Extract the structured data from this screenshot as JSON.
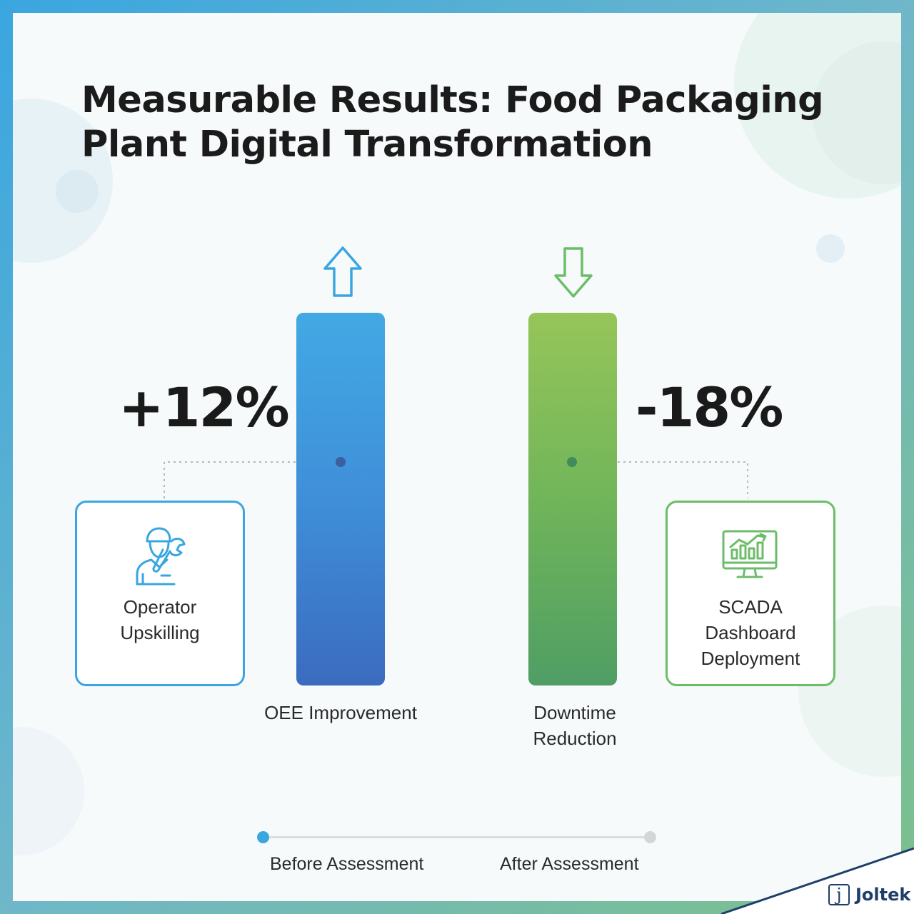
{
  "title": "Measurable Results: Food Packaging Plant Digital Transformation",
  "metrics": [
    {
      "label": "OEE Improvement",
      "change": "+12%",
      "direction": "up",
      "color": "#3f8fd8"
    },
    {
      "label": "Downtime Reduction",
      "change": "-18%",
      "direction": "down",
      "color": "#6cbd69"
    }
  ],
  "cards": {
    "left": {
      "label": "Operator Upskilling",
      "icon": "operator-wrench-icon",
      "color": "#3aa6e0"
    },
    "right": {
      "label": "SCADA Dashboard Deployment",
      "icon": "monitor-chart-icon",
      "color": "#6cbd69"
    }
  },
  "legend": {
    "before": "Before Assessment",
    "after": "After Assessment"
  },
  "brand": {
    "name": "Joltek",
    "mark": "j",
    "color": "#1f3f6a"
  }
}
